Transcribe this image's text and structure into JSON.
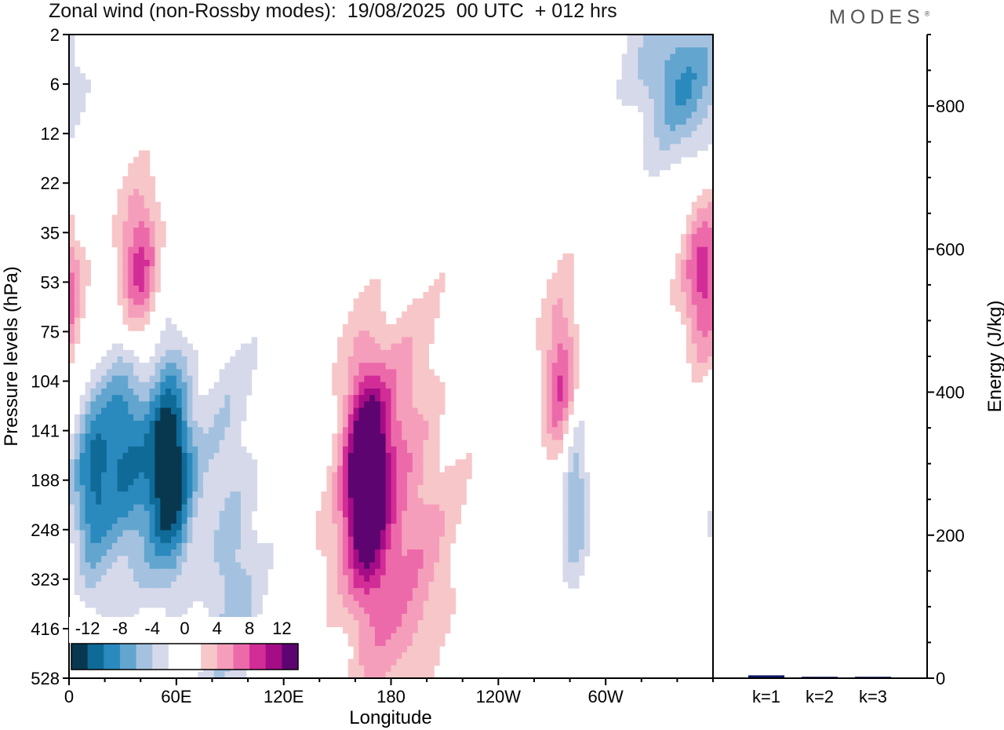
{
  "header": {
    "title": "Zonal wind (non-Rossby modes):  19/08/2025  00 UTC  + 012 hrs",
    "brand": "MODES",
    "brand_mark": "®"
  },
  "chart_data": [
    {
      "type": "heatmap",
      "title": "Zonal wind (non-Rossby modes):  19/08/2025  00 UTC  + 012 hrs",
      "xlabel": "Longitude",
      "ylabel": "Pressure levels (hPa)",
      "x_ticks": [
        "0",
        "60E",
        "120E",
        "180",
        "120W",
        "60W"
      ],
      "x_tick_values": [
        0,
        60,
        120,
        180,
        240,
        300
      ],
      "xlim": [
        0,
        360
      ],
      "y_ticks": [
        "2",
        "6",
        "12",
        "22",
        "35",
        "53",
        "75",
        "104",
        "141",
        "188",
        "248",
        "323",
        "416",
        "528"
      ],
      "colorbar": {
        "labels": [
          "-12",
          "-8",
          "-4",
          "0",
          "4",
          "8",
          "12"
        ],
        "levels": [
          -14,
          -12,
          -10,
          -8,
          -6,
          -4,
          -2,
          0,
          2,
          4,
          6,
          8,
          10,
          12,
          14
        ],
        "colors": [
          "#08384f",
          "#0f6a98",
          "#2a89bd",
          "#62a5cf",
          "#a4c2e0",
          "#d6d9ea",
          "#ffffff",
          "#ffffff",
          "#f7c6c8",
          "#f59ebb",
          "#ec6aaa",
          "#d22c97",
          "#a40d85",
          "#5e0470"
        ]
      },
      "features": [
        {
          "name": "negative core",
          "lon": 56,
          "level": 170,
          "value": -15,
          "lon_width": 9,
          "level_width": 1.6
        },
        {
          "name": "negative upper-left lobe",
          "lon": 32,
          "level": 165,
          "value": -10,
          "lon_width": 10,
          "level_width": 1.5
        },
        {
          "name": "negative lobe",
          "lon": 13,
          "level": 205,
          "value": -9,
          "lon_width": 8,
          "level_width": 1.5
        },
        {
          "name": "negative tail",
          "lon": 90,
          "level": 280,
          "value": -5,
          "lon_width": 12,
          "level_width": 2.8
        },
        {
          "name": "negative stratosphere east",
          "lon": 340,
          "level": 5,
          "value": -8,
          "lon_width": 18,
          "level_width": 1.1
        },
        {
          "name": "negative lobe 60W",
          "lon": 282,
          "level": 190,
          "value": -9,
          "lon_width": 6,
          "level_width": 1.3
        },
        {
          "name": "positive core 180",
          "lon": 166,
          "level": 185,
          "value": 14,
          "lon_width": 8,
          "level_width": 1.5
        },
        {
          "name": "positive broad 180",
          "lon": 180,
          "level": 230,
          "value": 7,
          "lon_width": 22,
          "level_width": 2.8
        },
        {
          "name": "positive band 90W",
          "lon": 276,
          "level": 115,
          "value": 10,
          "lon_width": 7,
          "level_width": 1.3
        },
        {
          "name": "positive upper-left",
          "lon": 40,
          "level": 50,
          "value": 9,
          "lon_width": 8,
          "level_width": 1.2
        },
        {
          "name": "positive band 30W",
          "lon": 355,
          "level": 55,
          "value": 9,
          "lon_width": 8,
          "level_width": 1.2
        }
      ]
    },
    {
      "type": "bar",
      "ylabel": "Energy (J/kg)",
      "categories": [
        "k=1",
        "k=2",
        "k=3"
      ],
      "values": [
        4,
        2,
        2
      ],
      "ylim": [
        0,
        900
      ],
      "y_ticks": [
        "0",
        "200",
        "400",
        "600",
        "800"
      ],
      "y_tick_values": [
        0,
        200,
        400,
        600,
        800
      ],
      "bar_color": "#0b1766"
    }
  ]
}
